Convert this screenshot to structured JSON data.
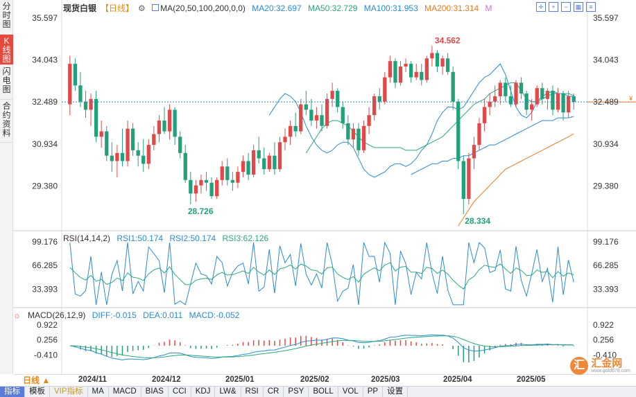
{
  "sidebar": {
    "tabs": [
      {
        "label": "分时图",
        "active": false
      },
      {
        "label": "K线图",
        "active": true
      },
      {
        "label": "闪电图",
        "active": false
      },
      {
        "label": "合约资料",
        "active": false
      }
    ]
  },
  "legend": {
    "title": "现货白银",
    "period": "【日线】",
    "ma_label": "MA(20,50,100,200,0,0)",
    "ma20": "MA20:32.697",
    "ma50": "MA50:32.729",
    "ma100": "MA100:31.953",
    "ma200": "MA200:31.314",
    "m": "M"
  },
  "rsi_legend": {
    "label": "RSI(14,14,2)",
    "rsi1": "RSI1:50.174",
    "rsi2": "RSI2:50.174",
    "rsi3": "RSI3:62.126"
  },
  "macd_legend": {
    "label": "MACD(26,12,9)",
    "diff": "DIFF:-0.015",
    "dea": "DEA:0.011",
    "macd": "MACD:-0.052"
  },
  "price_axis": [
    "35.597",
    "34.043",
    "32.489",
    "30.934",
    "29.380"
  ],
  "rsi_axis": [
    "99.176",
    "66.285",
    "33.393"
  ],
  "macd_axis": [
    "0.922",
    "0.256",
    "-0.410"
  ],
  "annotations": {
    "high": "34.562",
    "low1": "28.726",
    "low2": "28.334"
  },
  "dates": [
    "2024/11",
    "2024/12",
    "2025/01",
    "2025/02",
    "2025/03",
    "2025/04",
    "2025/05"
  ],
  "period_selector": "日线 ▲",
  "bottom_buttons": [
    "指标",
    "模板",
    "VIP指标",
    "MA",
    "MACD",
    "BIAS",
    "CCI",
    "KDJ",
    "LW&",
    "RSI",
    "CR",
    "PSY",
    "BOLL",
    "VOL",
    "PP",
    "设置"
  ],
  "watermark": {
    "logo": "汇",
    "name": "汇金网",
    "sub": "www.gold678.com"
  },
  "colors": {
    "up": "#e0494a",
    "down": "#22a07a",
    "ma20": "#2a8ad6",
    "ma50": "#2aa87a",
    "ma100": "#2a8ad6",
    "ma200": "#f07a20",
    "accent": "#5a7bd8"
  },
  "chart_data": {
    "type": "candlestick",
    "price_range": [
      27.8,
      35.8
    ],
    "current_price": 32.489,
    "candles": [
      {
        "o": 32.4,
        "h": 34.2,
        "l": 32.0,
        "c": 33.9
      },
      {
        "o": 33.9,
        "h": 34.1,
        "l": 32.9,
        "c": 33.1
      },
      {
        "o": 33.1,
        "h": 33.6,
        "l": 32.3,
        "c": 32.5
      },
      {
        "o": 32.5,
        "h": 32.9,
        "l": 31.9,
        "c": 32.2
      },
      {
        "o": 32.2,
        "h": 32.8,
        "l": 31.6,
        "c": 32.6
      },
      {
        "o": 32.6,
        "h": 32.9,
        "l": 31.0,
        "c": 31.2
      },
      {
        "o": 31.2,
        "h": 31.8,
        "l": 30.8,
        "c": 31.4
      },
      {
        "o": 31.4,
        "h": 31.6,
        "l": 30.3,
        "c": 30.5
      },
      {
        "o": 30.5,
        "h": 31.0,
        "l": 29.9,
        "c": 30.3
      },
      {
        "o": 30.3,
        "h": 30.9,
        "l": 29.7,
        "c": 30.6
      },
      {
        "o": 30.6,
        "h": 31.5,
        "l": 30.1,
        "c": 30.3
      },
      {
        "o": 30.3,
        "h": 31.8,
        "l": 30.1,
        "c": 31.5
      },
      {
        "o": 31.5,
        "h": 31.7,
        "l": 30.5,
        "c": 30.7
      },
      {
        "o": 30.7,
        "h": 31.0,
        "l": 30.1,
        "c": 30.5
      },
      {
        "o": 30.5,
        "h": 31.1,
        "l": 29.9,
        "c": 30.2
      },
      {
        "o": 30.2,
        "h": 31.1,
        "l": 30.0,
        "c": 30.9
      },
      {
        "o": 30.9,
        "h": 31.6,
        "l": 30.7,
        "c": 31.3
      },
      {
        "o": 31.3,
        "h": 32.0,
        "l": 31.0,
        "c": 31.8
      },
      {
        "o": 31.8,
        "h": 32.3,
        "l": 31.3,
        "c": 31.4
      },
      {
        "o": 31.4,
        "h": 32.4,
        "l": 31.1,
        "c": 32.2
      },
      {
        "o": 32.2,
        "h": 32.3,
        "l": 30.9,
        "c": 31.2
      },
      {
        "o": 31.2,
        "h": 31.4,
        "l": 30.4,
        "c": 30.6
      },
      {
        "o": 30.6,
        "h": 30.9,
        "l": 29.5,
        "c": 29.6
      },
      {
        "o": 29.6,
        "h": 29.9,
        "l": 28.7,
        "c": 29.1
      },
      {
        "o": 29.1,
        "h": 29.6,
        "l": 28.8,
        "c": 29.4
      },
      {
        "o": 29.4,
        "h": 29.8,
        "l": 29.1,
        "c": 29.6
      },
      {
        "o": 29.6,
        "h": 29.9,
        "l": 29.2,
        "c": 29.5
      },
      {
        "o": 29.5,
        "h": 29.7,
        "l": 28.9,
        "c": 29.0
      },
      {
        "o": 29.0,
        "h": 29.7,
        "l": 28.9,
        "c": 29.6
      },
      {
        "o": 29.6,
        "h": 30.3,
        "l": 29.4,
        "c": 30.1
      },
      {
        "o": 30.1,
        "h": 30.4,
        "l": 29.4,
        "c": 29.6
      },
      {
        "o": 29.6,
        "h": 29.9,
        "l": 29.2,
        "c": 29.5
      },
      {
        "o": 29.5,
        "h": 30.1,
        "l": 29.3,
        "c": 29.9
      },
      {
        "o": 29.9,
        "h": 30.5,
        "l": 29.7,
        "c": 30.3
      },
      {
        "o": 30.3,
        "h": 30.6,
        "l": 29.6,
        "c": 29.8
      },
      {
        "o": 29.8,
        "h": 30.9,
        "l": 29.7,
        "c": 30.7
      },
      {
        "o": 30.7,
        "h": 31.2,
        "l": 30.2,
        "c": 30.4
      },
      {
        "o": 30.4,
        "h": 30.8,
        "l": 29.8,
        "c": 30.0
      },
      {
        "o": 30.0,
        "h": 30.6,
        "l": 29.9,
        "c": 30.5
      },
      {
        "o": 30.5,
        "h": 31.0,
        "l": 29.8,
        "c": 30.0
      },
      {
        "o": 30.0,
        "h": 31.2,
        "l": 29.9,
        "c": 31.0
      },
      {
        "o": 31.0,
        "h": 31.5,
        "l": 30.7,
        "c": 31.2
      },
      {
        "o": 31.2,
        "h": 31.8,
        "l": 30.9,
        "c": 31.6
      },
      {
        "o": 31.6,
        "h": 32.1,
        "l": 31.2,
        "c": 31.4
      },
      {
        "o": 31.4,
        "h": 32.6,
        "l": 31.3,
        "c": 32.4
      },
      {
        "o": 32.4,
        "h": 32.9,
        "l": 32.0,
        "c": 32.2
      },
      {
        "o": 32.2,
        "h": 32.6,
        "l": 31.6,
        "c": 31.8
      },
      {
        "o": 31.8,
        "h": 32.3,
        "l": 31.5,
        "c": 32.0
      },
      {
        "o": 32.0,
        "h": 32.4,
        "l": 31.4,
        "c": 31.6
      },
      {
        "o": 31.6,
        "h": 32.8,
        "l": 31.5,
        "c": 32.6
      },
      {
        "o": 32.6,
        "h": 33.2,
        "l": 32.3,
        "c": 32.9
      },
      {
        "o": 32.9,
        "h": 33.0,
        "l": 32.1,
        "c": 32.3
      },
      {
        "o": 32.3,
        "h": 32.5,
        "l": 31.5,
        "c": 31.7
      },
      {
        "o": 31.7,
        "h": 32.0,
        "l": 30.9,
        "c": 31.1
      },
      {
        "o": 31.1,
        "h": 31.7,
        "l": 30.8,
        "c": 31.5
      },
      {
        "o": 31.5,
        "h": 31.7,
        "l": 30.5,
        "c": 30.7
      },
      {
        "o": 30.7,
        "h": 31.8,
        "l": 30.6,
        "c": 31.6
      },
      {
        "o": 31.6,
        "h": 32.3,
        "l": 31.3,
        "c": 32.0
      },
      {
        "o": 32.0,
        "h": 32.8,
        "l": 31.8,
        "c": 32.7
      },
      {
        "o": 32.7,
        "h": 33.0,
        "l": 32.2,
        "c": 32.5
      },
      {
        "o": 32.5,
        "h": 33.6,
        "l": 32.4,
        "c": 33.4
      },
      {
        "o": 33.4,
        "h": 34.2,
        "l": 33.2,
        "c": 34.0
      },
      {
        "o": 34.0,
        "h": 34.1,
        "l": 33.0,
        "c": 33.2
      },
      {
        "o": 33.2,
        "h": 34.0,
        "l": 33.1,
        "c": 33.8
      },
      {
        "o": 33.8,
        "h": 34.1,
        "l": 33.6,
        "c": 33.9
      },
      {
        "o": 33.9,
        "h": 34.0,
        "l": 33.2,
        "c": 33.4
      },
      {
        "o": 33.4,
        "h": 33.9,
        "l": 33.3,
        "c": 33.6
      },
      {
        "o": 33.6,
        "h": 33.9,
        "l": 33.1,
        "c": 33.3
      },
      {
        "o": 33.3,
        "h": 34.2,
        "l": 33.2,
        "c": 34.1
      },
      {
        "o": 34.1,
        "h": 34.562,
        "l": 33.8,
        "c": 34.3
      },
      {
        "o": 34.3,
        "h": 34.4,
        "l": 33.6,
        "c": 33.8
      },
      {
        "o": 33.8,
        "h": 34.2,
        "l": 33.5,
        "c": 34.1
      },
      {
        "o": 34.1,
        "h": 34.3,
        "l": 33.5,
        "c": 33.6
      },
      {
        "o": 33.6,
        "h": 33.8,
        "l": 32.2,
        "c": 32.5
      },
      {
        "o": 32.5,
        "h": 32.6,
        "l": 30.0,
        "c": 30.3
      },
      {
        "o": 30.3,
        "h": 30.5,
        "l": 28.334,
        "c": 28.9
      },
      {
        "o": 28.9,
        "h": 30.6,
        "l": 28.7,
        "c": 30.4
      },
      {
        "o": 30.4,
        "h": 31.2,
        "l": 30.0,
        "c": 30.9
      },
      {
        "o": 30.9,
        "h": 31.9,
        "l": 30.7,
        "c": 31.7
      },
      {
        "o": 31.7,
        "h": 32.6,
        "l": 31.4,
        "c": 32.3
      },
      {
        "o": 32.3,
        "h": 32.8,
        "l": 32.0,
        "c": 32.5
      },
      {
        "o": 32.5,
        "h": 33.1,
        "l": 32.3,
        "c": 32.7
      },
      {
        "o": 32.7,
        "h": 33.3,
        "l": 32.4,
        "c": 33.2
      },
      {
        "o": 33.2,
        "h": 33.4,
        "l": 32.5,
        "c": 32.7
      },
      {
        "o": 32.7,
        "h": 33.1,
        "l": 32.3,
        "c": 32.4
      },
      {
        "o": 32.4,
        "h": 33.3,
        "l": 32.3,
        "c": 33.2
      },
      {
        "o": 33.2,
        "h": 33.4,
        "l": 32.6,
        "c": 32.8
      },
      {
        "o": 32.8,
        "h": 32.9,
        "l": 32.0,
        "c": 32.2
      },
      {
        "o": 32.2,
        "h": 32.6,
        "l": 31.8,
        "c": 32.4
      },
      {
        "o": 32.4,
        "h": 33.1,
        "l": 32.3,
        "c": 33.0
      },
      {
        "o": 33.0,
        "h": 33.2,
        "l": 32.4,
        "c": 32.6
      },
      {
        "o": 32.6,
        "h": 33.0,
        "l": 32.2,
        "c": 32.9
      },
      {
        "o": 32.9,
        "h": 33.1,
        "l": 32.0,
        "c": 32.2
      },
      {
        "o": 32.2,
        "h": 33.0,
        "l": 32.1,
        "c": 32.8
      },
      {
        "o": 32.8,
        "h": 32.9,
        "l": 31.8,
        "c": 32.1
      },
      {
        "o": 32.1,
        "h": 32.9,
        "l": 31.9,
        "c": 32.7
      },
      {
        "o": 32.7,
        "h": 32.8,
        "l": 32.2,
        "c": 32.489
      }
    ],
    "ma20": [
      32.0,
      32.3,
      32.6,
      32.8,
      32.7,
      32.5,
      32.1,
      31.6,
      31.2,
      30.9,
      30.7,
      30.6,
      30.7,
      30.9,
      31.0,
      31.0,
      30.8,
      30.4,
      30.0,
      29.8,
      29.7,
      29.8,
      29.9,
      30.1,
      30.2,
      30.2,
      30.1,
      30.2,
      30.4,
      30.7,
      30.9,
      31.3,
      31.8,
      32.1,
      32.3,
      32.3,
      32.2,
      32.3,
      32.6,
      32.9,
      33.2,
      33.4,
      33.5,
      33.7,
      33.9,
      33.5,
      32.9,
      32.3,
      32.0,
      31.9,
      32.1,
      32.5,
      32.7,
      32.8,
      32.9,
      32.8,
      32.8,
      32.7,
      32.697
    ],
    "ma50": [
      30.6,
      30.9,
      31.2,
      31.5,
      31.7,
      31.8,
      31.8,
      31.7,
      31.6,
      31.4,
      31.2,
      31.0,
      30.9,
      30.8,
      30.8,
      30.8,
      30.8,
      30.8,
      30.8,
      30.7,
      30.7,
      30.7,
      30.8,
      30.9,
      31.0,
      31.1,
      31.2,
      31.4,
      31.6,
      31.8,
      32.0,
      32.2,
      32.4,
      32.5,
      32.6,
      32.8,
      32.9,
      33.0,
      33.1,
      33.2,
      33.2,
      32.9,
      32.6,
      32.5,
      32.5,
      32.6,
      32.7,
      32.8,
      32.8,
      32.8,
      32.8,
      32.729
    ],
    "ma100": [
      29.8,
      29.9,
      30.0,
      30.1,
      30.2,
      30.2,
      30.3,
      30.3,
      30.4,
      30.4,
      30.5,
      30.5,
      30.6,
      30.7,
      30.8,
      30.9,
      30.9,
      31.0,
      31.1,
      31.2,
      31.3,
      31.4,
      31.5,
      31.6,
      31.7,
      31.8,
      31.8,
      31.8,
      31.9,
      31.9,
      31.9,
      31.953
    ],
    "ma200": [
      27.9,
      28.2,
      28.5,
      28.8,
      29.0,
      29.2,
      29.4,
      29.6,
      29.8,
      30.0,
      30.1,
      30.2,
      30.3,
      30.4,
      30.5,
      30.6,
      30.7,
      30.8,
      30.9,
      31.0,
      31.1,
      31.2,
      31.314
    ],
    "rsi_range": [
      0,
      100
    ],
    "macd_range": [
      -1.2,
      1.2
    ]
  }
}
